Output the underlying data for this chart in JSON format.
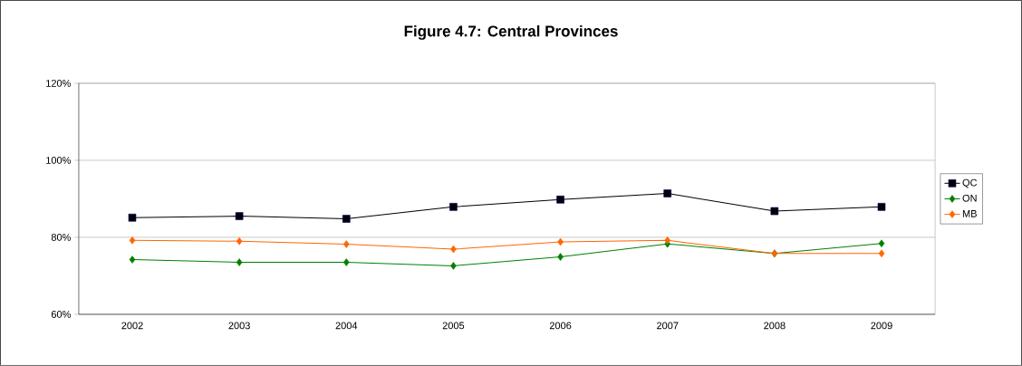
{
  "chart_data": {
    "type": "line",
    "title": "Figure 4.7: Central Provinces",
    "categories": [
      "2002",
      "2003",
      "2004",
      "2005",
      "2006",
      "2007",
      "2008",
      "2009"
    ],
    "series": [
      {
        "name": "QC",
        "color": "#000000",
        "marker": "square",
        "values": [
          85.1,
          85.5,
          84.8,
          87.9,
          89.8,
          91.4,
          86.8,
          87.9
        ]
      },
      {
        "name": "ON",
        "color": "#008000",
        "marker": "diamond",
        "values": [
          74.2,
          73.5,
          73.5,
          72.6,
          74.9,
          78.3,
          75.8,
          78.4
        ]
      },
      {
        "name": "MB",
        "color": "#ff6600",
        "marker": "diamond",
        "values": [
          79.2,
          79.0,
          78.2,
          76.9,
          78.8,
          79.2,
          75.8,
          75.8
        ]
      }
    ],
    "ylim": [
      60,
      120
    ],
    "yticks": [
      {
        "value": 60,
        "label": "60%"
      },
      {
        "value": 80,
        "label": "80%"
      },
      {
        "value": 100,
        "label": "100%"
      },
      {
        "value": 120,
        "label": "120%"
      }
    ],
    "grid": "y",
    "legend": "right",
    "line_style": "solid"
  }
}
